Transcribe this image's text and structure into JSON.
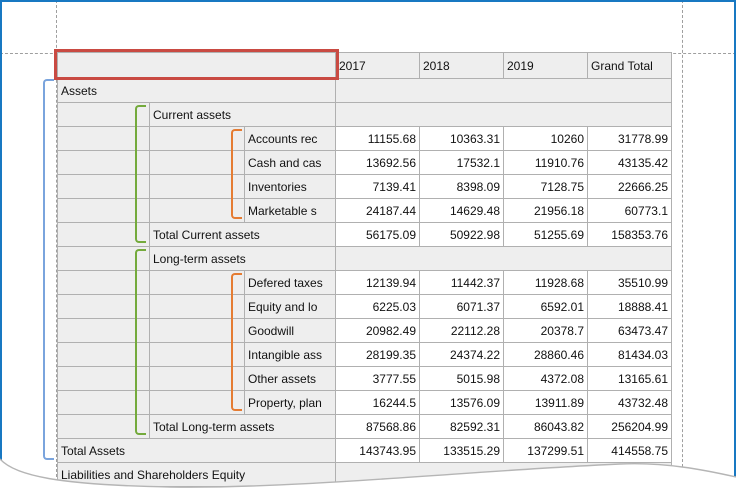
{
  "colors": {
    "frame_blue": "#1878c2",
    "selection_red": "#c94a42",
    "band_level1_blue": "#7aa4dd",
    "band_level2_green": "#74aa3c",
    "band_level3_orange": "#e57c33",
    "cell_fill": "#eeeeee",
    "grid_line": "#b0b0b0"
  },
  "table": {
    "corner_label": "",
    "columns": [
      "2017",
      "2018",
      "2019",
      "Grand Total"
    ],
    "rows": [
      {
        "type": "group",
        "level": 0,
        "label": "Assets"
      },
      {
        "type": "group",
        "level": 1,
        "label": "Current assets"
      },
      {
        "type": "detail",
        "level": 2,
        "label": "Accounts rec",
        "values": [
          "11155.68",
          "10363.31",
          "10260",
          "31778.99"
        ]
      },
      {
        "type": "detail",
        "level": 2,
        "label": "Cash and cas",
        "values": [
          "13692.56",
          "17532.1",
          "11910.76",
          "43135.42"
        ]
      },
      {
        "type": "detail",
        "level": 2,
        "label": "Inventories",
        "values": [
          "7139.41",
          "8398.09",
          "7128.75",
          "22666.25"
        ]
      },
      {
        "type": "detail",
        "level": 2,
        "label": "Marketable s",
        "values": [
          "24187.44",
          "14629.48",
          "21956.18",
          "60773.1"
        ]
      },
      {
        "type": "total",
        "level": 1,
        "label": "Total Current assets",
        "values": [
          "56175.09",
          "50922.98",
          "51255.69",
          "158353.76"
        ]
      },
      {
        "type": "group",
        "level": 1,
        "label": "Long-term assets"
      },
      {
        "type": "detail",
        "level": 2,
        "label": "Defered taxes",
        "values": [
          "12139.94",
          "11442.37",
          "11928.68",
          "35510.99"
        ]
      },
      {
        "type": "detail",
        "level": 2,
        "label": "Equity and lo",
        "values": [
          "6225.03",
          "6071.37",
          "6592.01",
          "18888.41"
        ]
      },
      {
        "type": "detail",
        "level": 2,
        "label": "Goodwill",
        "values": [
          "20982.49",
          "22112.28",
          "20378.7",
          "63473.47"
        ]
      },
      {
        "type": "detail",
        "level": 2,
        "label": "Intangible ass",
        "values": [
          "28199.35",
          "24374.22",
          "28860.46",
          "81434.03"
        ]
      },
      {
        "type": "detail",
        "level": 2,
        "label": "Other assets",
        "values": [
          "3777.55",
          "5015.98",
          "4372.08",
          "13165.61"
        ]
      },
      {
        "type": "detail",
        "level": 2,
        "label": "Property, plan",
        "values": [
          "16244.5",
          "13576.09",
          "13911.89",
          "43732.48"
        ]
      },
      {
        "type": "total",
        "level": 1,
        "label": "Total Long-term assets",
        "values": [
          "87568.86",
          "82592.31",
          "86043.82",
          "256204.99"
        ]
      },
      {
        "type": "total",
        "level": 0,
        "label": "Total Assets",
        "values": [
          "143743.95",
          "133515.29",
          "137299.51",
          "414558.75"
        ]
      },
      {
        "type": "group",
        "level": 0,
        "label": "Liabilities and Shareholders Equity"
      }
    ]
  }
}
